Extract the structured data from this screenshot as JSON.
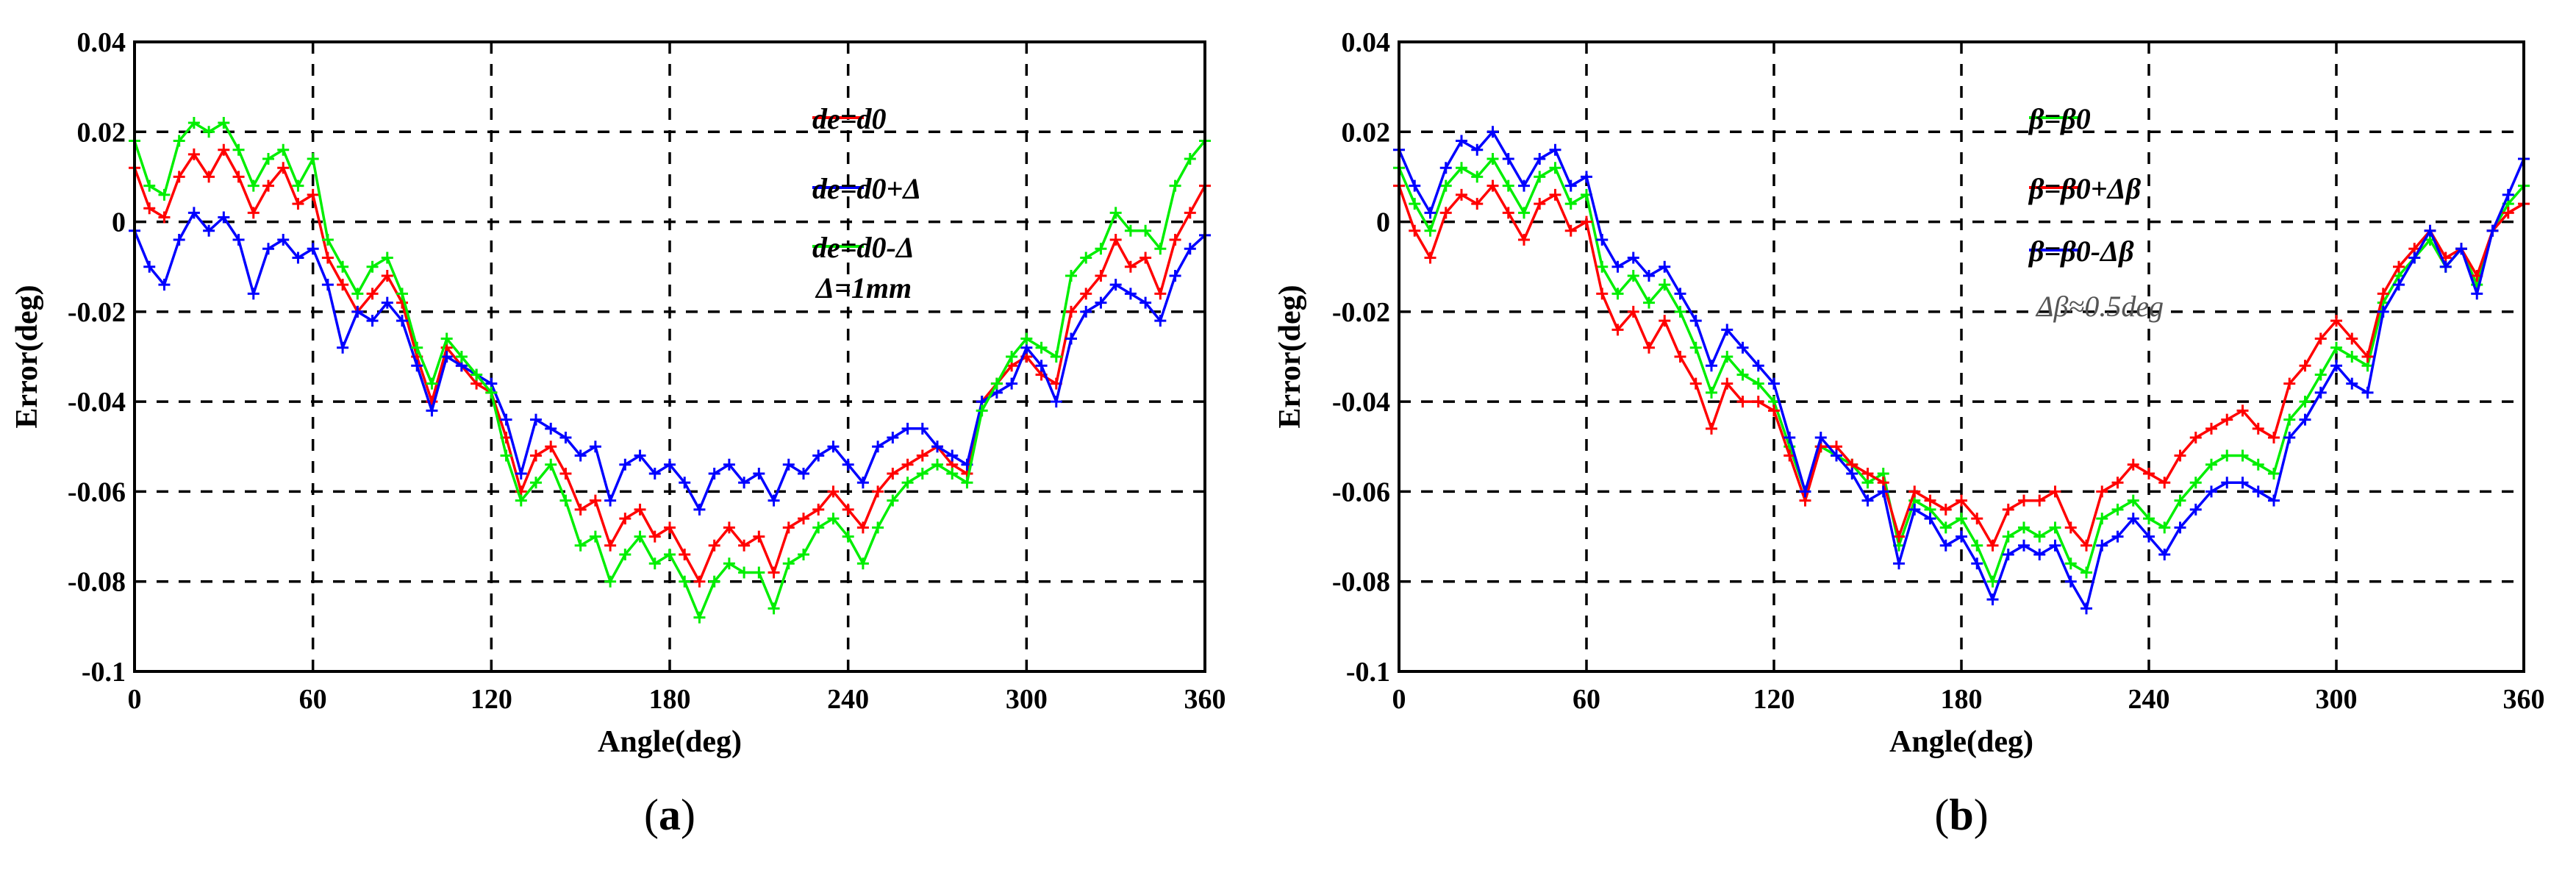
{
  "chart_data": [
    {
      "type": "line",
      "panel_label_prefix": "(",
      "panel_label_letter": "a",
      "panel_label_suffix": ")",
      "xlabel": "Angle(deg)",
      "ylabel": "Error(deg)",
      "xlim": [
        0,
        360
      ],
      "ylim": [
        -0.1,
        0.04
      ],
      "xticks": [
        0,
        60,
        120,
        180,
        240,
        300,
        360
      ],
      "xtick_labels": [
        "0",
        "60",
        "120",
        "180",
        "240",
        "300",
        "360"
      ],
      "yticks": [
        -0.1,
        -0.08,
        -0.06,
        -0.04,
        -0.02,
        0,
        0.02,
        0.04
      ],
      "ytick_labels": [
        "-0.1",
        "-0.08",
        "-0.06",
        "-0.04",
        "-0.02",
        "0",
        "0.02",
        "0.04"
      ],
      "grid": true,
      "legend_position": "top-right",
      "annotation": "Δ=1mm",
      "series": [
        {
          "name": "de=d0",
          "color": "#ff0000",
          "x": [
            0,
            5,
            10,
            15,
            20,
            25,
            30,
            35,
            40,
            45,
            50,
            55,
            60,
            65,
            70,
            75,
            80,
            85,
            90,
            95,
            100,
            105,
            110,
            115,
            120,
            125,
            130,
            135,
            140,
            145,
            150,
            155,
            160,
            165,
            170,
            175,
            180,
            185,
            190,
            195,
            200,
            205,
            210,
            215,
            220,
            225,
            230,
            235,
            240,
            245,
            250,
            255,
            260,
            265,
            270,
            275,
            280,
            285,
            290,
            295,
            300,
            305,
            310,
            315,
            320,
            325,
            330,
            335,
            340,
            345,
            350,
            355,
            360
          ],
          "values": [
            0.012,
            0.003,
            0.001,
            0.01,
            0.015,
            0.01,
            0.016,
            0.01,
            0.002,
            0.008,
            0.012,
            0.004,
            0.006,
            -0.008,
            -0.014,
            -0.02,
            -0.016,
            -0.012,
            -0.018,
            -0.03,
            -0.04,
            -0.028,
            -0.032,
            -0.036,
            -0.038,
            -0.048,
            -0.06,
            -0.052,
            -0.05,
            -0.056,
            -0.064,
            -0.062,
            -0.072,
            -0.066,
            -0.064,
            -0.07,
            -0.068,
            -0.074,
            -0.08,
            -0.072,
            -0.068,
            -0.072,
            -0.07,
            -0.078,
            -0.068,
            -0.066,
            -0.064,
            -0.06,
            -0.064,
            -0.068,
            -0.06,
            -0.056,
            -0.054,
            -0.052,
            -0.05,
            -0.054,
            -0.056,
            -0.04,
            -0.036,
            -0.032,
            -0.03,
            -0.034,
            -0.036,
            -0.02,
            -0.016,
            -0.012,
            -0.004,
            -0.01,
            -0.008,
            -0.016,
            -0.004,
            0.002,
            0.008
          ]
        },
        {
          "name": "de=d0+Δ",
          "color": "#0000ff",
          "x": [
            0,
            5,
            10,
            15,
            20,
            25,
            30,
            35,
            40,
            45,
            50,
            55,
            60,
            65,
            70,
            75,
            80,
            85,
            90,
            95,
            100,
            105,
            110,
            115,
            120,
            125,
            130,
            135,
            140,
            145,
            150,
            155,
            160,
            165,
            170,
            175,
            180,
            185,
            190,
            195,
            200,
            205,
            210,
            215,
            220,
            225,
            230,
            235,
            240,
            245,
            250,
            255,
            260,
            265,
            270,
            275,
            280,
            285,
            290,
            295,
            300,
            305,
            310,
            315,
            320,
            325,
            330,
            335,
            340,
            345,
            350,
            355,
            360
          ],
          "values": [
            -0.002,
            -0.01,
            -0.014,
            -0.004,
            0.002,
            -0.002,
            0.001,
            -0.004,
            -0.016,
            -0.006,
            -0.004,
            -0.008,
            -0.006,
            -0.014,
            -0.028,
            -0.02,
            -0.022,
            -0.018,
            -0.022,
            -0.032,
            -0.042,
            -0.03,
            -0.032,
            -0.034,
            -0.036,
            -0.044,
            -0.056,
            -0.044,
            -0.046,
            -0.048,
            -0.052,
            -0.05,
            -0.062,
            -0.054,
            -0.052,
            -0.056,
            -0.054,
            -0.058,
            -0.064,
            -0.056,
            -0.054,
            -0.058,
            -0.056,
            -0.062,
            -0.054,
            -0.056,
            -0.052,
            -0.05,
            -0.054,
            -0.058,
            -0.05,
            -0.048,
            -0.046,
            -0.046,
            -0.05,
            -0.052,
            -0.054,
            -0.04,
            -0.038,
            -0.036,
            -0.028,
            -0.032,
            -0.04,
            -0.026,
            -0.02,
            -0.018,
            -0.014,
            -0.016,
            -0.018,
            -0.022,
            -0.012,
            -0.006,
            -0.003
          ]
        },
        {
          "name": "de=d0-Δ",
          "color": "#00ee00",
          "x": [
            0,
            5,
            10,
            15,
            20,
            25,
            30,
            35,
            40,
            45,
            50,
            55,
            60,
            65,
            70,
            75,
            80,
            85,
            90,
            95,
            100,
            105,
            110,
            115,
            120,
            125,
            130,
            135,
            140,
            145,
            150,
            155,
            160,
            165,
            170,
            175,
            180,
            185,
            190,
            195,
            200,
            205,
            210,
            215,
            220,
            225,
            230,
            235,
            240,
            245,
            250,
            255,
            260,
            265,
            270,
            275,
            280,
            285,
            290,
            295,
            300,
            305,
            310,
            315,
            320,
            325,
            330,
            335,
            340,
            345,
            350,
            355,
            360
          ],
          "values": [
            0.018,
            0.008,
            0.006,
            0.018,
            0.022,
            0.02,
            0.022,
            0.016,
            0.008,
            0.014,
            0.016,
            0.008,
            0.014,
            -0.004,
            -0.01,
            -0.016,
            -0.01,
            -0.008,
            -0.016,
            -0.028,
            -0.036,
            -0.026,
            -0.03,
            -0.034,
            -0.038,
            -0.052,
            -0.062,
            -0.058,
            -0.054,
            -0.062,
            -0.072,
            -0.07,
            -0.08,
            -0.074,
            -0.07,
            -0.076,
            -0.074,
            -0.08,
            -0.088,
            -0.08,
            -0.076,
            -0.078,
            -0.078,
            -0.086,
            -0.076,
            -0.074,
            -0.068,
            -0.066,
            -0.07,
            -0.076,
            -0.068,
            -0.062,
            -0.058,
            -0.056,
            -0.054,
            -0.056,
            -0.058,
            -0.042,
            -0.036,
            -0.03,
            -0.026,
            -0.028,
            -0.03,
            -0.012,
            -0.008,
            -0.006,
            0.002,
            -0.002,
            -0.002,
            -0.006,
            0.008,
            0.014,
            0.018
          ]
        }
      ]
    },
    {
      "type": "line",
      "panel_label_prefix": "(",
      "panel_label_letter": "b",
      "panel_label_suffix": ")",
      "xlabel": "Angle(deg)",
      "ylabel": "Error(deg)",
      "xlim": [
        0,
        360
      ],
      "ylim": [
        -0.1,
        0.04
      ],
      "xticks": [
        0,
        60,
        120,
        180,
        240,
        300,
        360
      ],
      "xtick_labels": [
        "0",
        "60",
        "120",
        "180",
        "240",
        "300",
        "360"
      ],
      "yticks": [
        -0.1,
        -0.08,
        -0.06,
        -0.04,
        -0.02,
        0,
        0.02,
        0.04
      ],
      "ytick_labels": [
        "-0.1",
        "-0.08",
        "-0.06",
        "-0.04",
        "-0.02",
        "0",
        "0.02",
        "0.04"
      ],
      "grid": true,
      "legend_position": "top-center",
      "annotation": "Δβ≈0.5deg",
      "series": [
        {
          "name": "β=β0",
          "color": "#00ee00",
          "x": [
            0,
            5,
            10,
            15,
            20,
            25,
            30,
            35,
            40,
            45,
            50,
            55,
            60,
            65,
            70,
            75,
            80,
            85,
            90,
            95,
            100,
            105,
            110,
            115,
            120,
            125,
            130,
            135,
            140,
            145,
            150,
            155,
            160,
            165,
            170,
            175,
            180,
            185,
            190,
            195,
            200,
            205,
            210,
            215,
            220,
            225,
            230,
            235,
            240,
            245,
            250,
            255,
            260,
            265,
            270,
            275,
            280,
            285,
            290,
            295,
            300,
            305,
            310,
            315,
            320,
            325,
            330,
            335,
            340,
            345,
            350,
            355,
            360
          ],
          "values": [
            0.012,
            0.004,
            -0.002,
            0.008,
            0.012,
            0.01,
            0.014,
            0.008,
            0.002,
            0.01,
            0.012,
            0.004,
            0.006,
            -0.01,
            -0.016,
            -0.012,
            -0.018,
            -0.014,
            -0.02,
            -0.028,
            -0.038,
            -0.03,
            -0.034,
            -0.036,
            -0.04,
            -0.05,
            -0.06,
            -0.05,
            -0.052,
            -0.054,
            -0.058,
            -0.056,
            -0.072,
            -0.062,
            -0.064,
            -0.068,
            -0.066,
            -0.072,
            -0.08,
            -0.07,
            -0.068,
            -0.07,
            -0.068,
            -0.076,
            -0.078,
            -0.066,
            -0.064,
            -0.062,
            -0.066,
            -0.068,
            -0.062,
            -0.058,
            -0.054,
            -0.052,
            -0.052,
            -0.054,
            -0.056,
            -0.044,
            -0.04,
            -0.034,
            -0.028,
            -0.03,
            -0.032,
            -0.018,
            -0.012,
            -0.008,
            -0.004,
            -0.01,
            -0.006,
            -0.014,
            -0.002,
            0.004,
            0.008
          ]
        },
        {
          "name": "β=β0+Δβ",
          "color": "#ff0000",
          "x": [
            0,
            5,
            10,
            15,
            20,
            25,
            30,
            35,
            40,
            45,
            50,
            55,
            60,
            65,
            70,
            75,
            80,
            85,
            90,
            95,
            100,
            105,
            110,
            115,
            120,
            125,
            130,
            135,
            140,
            145,
            150,
            155,
            160,
            165,
            170,
            175,
            180,
            185,
            190,
            195,
            200,
            205,
            210,
            215,
            220,
            225,
            230,
            235,
            240,
            245,
            250,
            255,
            260,
            265,
            270,
            275,
            280,
            285,
            290,
            295,
            300,
            305,
            310,
            315,
            320,
            325,
            330,
            335,
            340,
            345,
            350,
            355,
            360
          ],
          "values": [
            0.008,
            -0.002,
            -0.008,
            0.002,
            0.006,
            0.004,
            0.008,
            0.002,
            -0.004,
            0.004,
            0.006,
            -0.002,
            0.0,
            -0.016,
            -0.024,
            -0.02,
            -0.028,
            -0.022,
            -0.03,
            -0.036,
            -0.046,
            -0.036,
            -0.04,
            -0.04,
            -0.042,
            -0.052,
            -0.062,
            -0.05,
            -0.05,
            -0.054,
            -0.056,
            -0.058,
            -0.07,
            -0.06,
            -0.062,
            -0.064,
            -0.062,
            -0.066,
            -0.072,
            -0.064,
            -0.062,
            -0.062,
            -0.06,
            -0.068,
            -0.072,
            -0.06,
            -0.058,
            -0.054,
            -0.056,
            -0.058,
            -0.052,
            -0.048,
            -0.046,
            -0.044,
            -0.042,
            -0.046,
            -0.048,
            -0.036,
            -0.032,
            -0.026,
            -0.022,
            -0.026,
            -0.03,
            -0.016,
            -0.01,
            -0.006,
            -0.002,
            -0.008,
            -0.006,
            -0.012,
            -0.002,
            0.002,
            0.004
          ]
        },
        {
          "name": "β=β0-Δβ",
          "color": "#0000ff",
          "x": [
            0,
            5,
            10,
            15,
            20,
            25,
            30,
            35,
            40,
            45,
            50,
            55,
            60,
            65,
            70,
            75,
            80,
            85,
            90,
            95,
            100,
            105,
            110,
            115,
            120,
            125,
            130,
            135,
            140,
            145,
            150,
            155,
            160,
            165,
            170,
            175,
            180,
            185,
            190,
            195,
            200,
            205,
            210,
            215,
            220,
            225,
            230,
            235,
            240,
            245,
            250,
            255,
            260,
            265,
            270,
            275,
            280,
            285,
            290,
            295,
            300,
            305,
            310,
            315,
            320,
            325,
            330,
            335,
            340,
            345,
            350,
            355,
            360
          ],
          "values": [
            0.016,
            0.008,
            0.002,
            0.012,
            0.018,
            0.016,
            0.02,
            0.014,
            0.008,
            0.014,
            0.016,
            0.008,
            0.01,
            -0.004,
            -0.01,
            -0.008,
            -0.012,
            -0.01,
            -0.016,
            -0.022,
            -0.032,
            -0.024,
            -0.028,
            -0.032,
            -0.036,
            -0.048,
            -0.06,
            -0.048,
            -0.052,
            -0.056,
            -0.062,
            -0.06,
            -0.076,
            -0.064,
            -0.066,
            -0.072,
            -0.07,
            -0.076,
            -0.084,
            -0.074,
            -0.072,
            -0.074,
            -0.072,
            -0.08,
            -0.086,
            -0.072,
            -0.07,
            -0.066,
            -0.07,
            -0.074,
            -0.068,
            -0.064,
            -0.06,
            -0.058,
            -0.058,
            -0.06,
            -0.062,
            -0.048,
            -0.044,
            -0.038,
            -0.032,
            -0.036,
            -0.038,
            -0.02,
            -0.014,
            -0.008,
            -0.002,
            -0.01,
            -0.006,
            -0.016,
            -0.002,
            0.006,
            0.014
          ]
        }
      ]
    }
  ]
}
